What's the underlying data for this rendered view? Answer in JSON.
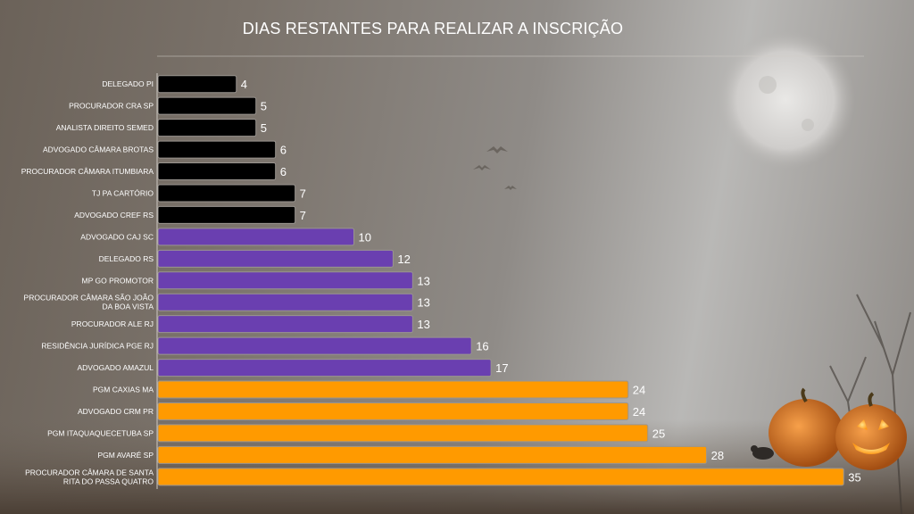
{
  "chart_data": {
    "type": "bar",
    "orientation": "horizontal",
    "title": "DIAS RESTANTES PARA REALIZAR A INSCRIÇÃO",
    "categories": [
      "DELEGADO PI",
      "PROCURADOR CRA SP",
      "ANALISTA DIREITO SEMED",
      "ADVOGADO CÂMARA BROTAS",
      "PROCURADOR CÂMARA ITUMBIARA",
      "TJ PA CARTÓRIO",
      "ADVOGADO CREF RS",
      "ADVOGADO CAJ SC",
      "DELEGADO RS",
      "MP GO PROMOTOR",
      "PROCURADOR CÂMARA SÃO JOÃO DA BOA VISTA",
      "PROCURADOR ALE RJ",
      "RESIDÊNCIA JURÍDICA PGE RJ",
      "ADVOGADO AMAZUL",
      "PGM CAXIAS MA",
      "ADVOGADO CRM PR",
      "PGM ITAQUAQUECETUBA SP",
      "PGM AVARÉ SP",
      "PROCURADOR CÂMARA DE SANTA RITA DO PASSA QUATRO"
    ],
    "values": [
      4,
      5,
      5,
      6,
      6,
      7,
      7,
      10,
      12,
      13,
      13,
      13,
      16,
      17,
      24,
      24,
      25,
      28,
      35
    ],
    "xlim": [
      0,
      36
    ],
    "colors": {
      "black_bar": "#000000",
      "purple_bar": "#6a3fb0",
      "orange_bar": "#ff9a00"
    },
    "bar_colors": [
      "black_bar",
      "black_bar",
      "black_bar",
      "black_bar",
      "black_bar",
      "black_bar",
      "black_bar",
      "purple_bar",
      "purple_bar",
      "purple_bar",
      "purple_bar",
      "purple_bar",
      "purple_bar",
      "purple_bar",
      "orange_bar",
      "orange_bar",
      "orange_bar",
      "orange_bar",
      "orange_bar"
    ],
    "data_labels": true,
    "grid": false,
    "legend": "none"
  }
}
